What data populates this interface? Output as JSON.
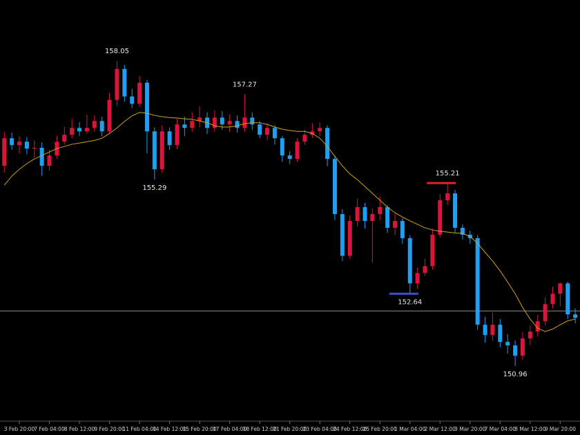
{
  "chart_data": {
    "type": "candlestick",
    "categories": [
      null,
      null,
      "3 Feb 20:00",
      null,
      null,
      null,
      "7 Feb 04:00",
      null,
      null,
      null,
      "8 Feb 12:00",
      null,
      null,
      null,
      "9 Feb 20:00",
      null,
      null,
      null,
      "11 Feb 04:00",
      null,
      null,
      null,
      "14 Feb 12:00",
      null,
      null,
      null,
      "15 Feb 20:00",
      null,
      null,
      null,
      "17 Feb 04:00",
      null,
      null,
      null,
      "18 Feb 12:00",
      null,
      null,
      null,
      "21 Feb 20:00",
      null,
      null,
      null,
      "23 Feb 04:00",
      null,
      null,
      null,
      "24 Feb 12:00",
      null,
      null,
      null,
      "25 Feb 20:00",
      null,
      null,
      null,
      "1 Mar 04:00",
      null,
      null,
      null,
      "2 Mar 12:00",
      null,
      null,
      null,
      "3 Mar 20:00",
      null,
      null,
      null,
      "7 Mar 04:00",
      null,
      null,
      null,
      "8 Mar 12:00",
      null,
      null,
      null,
      "9 Mar 20:00",
      null,
      null
    ],
    "open": [
      155.61,
      156.25,
      156.09,
      156.17,
      156.01,
      156.03,
      155.61,
      155.85,
      156.17,
      156.33,
      156.49,
      156.41,
      156.49,
      156.65,
      156.41,
      157.14,
      157.86,
      157.22,
      157.05,
      157.54,
      156.41,
      155.53,
      156.41,
      156.09,
      156.57,
      156.49,
      156.65,
      156.73,
      156.49,
      156.73,
      156.57,
      156.65,
      156.49,
      156.73,
      156.57,
      156.33,
      156.49,
      156.25,
      155.85,
      155.77,
      156.17,
      156.33,
      156.41,
      156.49,
      155.77,
      154.49,
      153.52,
      154.33,
      154.65,
      154.33,
      154.49,
      154.65,
      154.17,
      154.33,
      153.93,
      152.88,
      153.12,
      153.28,
      154.01,
      154.81,
      154.97,
      154.17,
      154.01,
      153.93,
      151.92,
      151.68,
      151.92,
      151.52,
      151.44,
      151.2,
      151.6,
      151.76,
      152.0,
      152.4,
      152.64,
      152.88,
      152.16
    ],
    "high": [
      156.4,
      156.38,
      156.3,
      156.28,
      156.2,
      156.15,
      155.98,
      156.3,
      156.52,
      156.7,
      156.62,
      156.8,
      156.78,
      156.75,
      157.3,
      158.05,
      157.95,
      157.4,
      157.7,
      157.6,
      156.5,
      156.55,
      156.5,
      156.7,
      156.75,
      156.85,
      157.0,
      156.85,
      156.9,
      156.88,
      156.8,
      156.78,
      157.27,
      156.85,
      156.65,
      156.6,
      156.55,
      156.3,
      155.95,
      156.25,
      156.45,
      156.6,
      156.62,
      156.55,
      155.85,
      154.6,
      154.45,
      154.85,
      154.75,
      154.62,
      154.9,
      154.7,
      154.5,
      154.4,
      154.0,
      153.25,
      153.45,
      154.15,
      154.95,
      155.21,
      155.05,
      154.25,
      154.1,
      154.0,
      152.1,
      152.2,
      152.05,
      151.7,
      151.55,
      151.75,
      151.9,
      152.15,
      152.55,
      152.8,
      152.9,
      152.92,
      152.3
    ],
    "low": [
      155.45,
      155.98,
      155.9,
      155.88,
      155.8,
      155.38,
      155.5,
      155.78,
      156.1,
      156.25,
      156.3,
      156.35,
      156.4,
      156.3,
      156.35,
      157.0,
      157.1,
      156.95,
      156.98,
      155.9,
      155.29,
      155.45,
      155.98,
      156.0,
      156.3,
      156.4,
      156.5,
      156.35,
      156.4,
      156.45,
      156.4,
      156.38,
      156.4,
      156.45,
      156.25,
      156.2,
      156.1,
      155.7,
      155.65,
      155.7,
      156.1,
      156.25,
      156.3,
      155.6,
      154.35,
      153.4,
      153.45,
      154.2,
      154.15,
      153.36,
      154.35,
      154.05,
      154.0,
      153.8,
      152.64,
      152.75,
      153.05,
      153.2,
      153.95,
      154.7,
      154.05,
      153.9,
      153.8,
      151.8,
      151.5,
      151.55,
      151.4,
      151.25,
      150.96,
      151.1,
      151.45,
      151.65,
      151.9,
      152.3,
      152.35,
      152.05,
      151.95
    ],
    "close": [
      156.25,
      156.09,
      156.17,
      156.01,
      156.03,
      155.61,
      155.85,
      156.17,
      156.33,
      156.49,
      156.41,
      156.49,
      156.65,
      156.41,
      157.14,
      157.86,
      157.22,
      157.05,
      157.54,
      156.41,
      155.53,
      156.41,
      156.09,
      156.57,
      156.49,
      156.65,
      156.73,
      156.49,
      156.73,
      156.57,
      156.65,
      156.49,
      156.73,
      156.57,
      156.33,
      156.49,
      156.25,
      155.85,
      155.77,
      156.17,
      156.33,
      156.41,
      156.49,
      155.77,
      154.49,
      153.52,
      154.33,
      154.65,
      154.33,
      154.49,
      154.65,
      154.17,
      154.33,
      153.93,
      152.88,
      153.12,
      153.28,
      154.01,
      154.81,
      154.97,
      154.17,
      154.01,
      153.93,
      151.92,
      151.68,
      151.92,
      151.52,
      151.44,
      151.2,
      151.6,
      151.76,
      152.0,
      152.4,
      152.64,
      152.88,
      152.16,
      152.08
    ],
    "up_color": "#dc143c",
    "down_color": "#1e9ff2",
    "ylim": [
      149.76,
      159.46
    ],
    "moving_average": {
      "color": "#d4a017",
      "values": [
        155.16,
        155.37,
        155.53,
        155.66,
        155.77,
        155.85,
        155.93,
        156.01,
        156.06,
        156.11,
        156.14,
        156.17,
        156.2,
        156.25,
        156.36,
        156.49,
        156.64,
        156.77,
        156.85,
        156.83,
        156.78,
        156.75,
        156.73,
        156.72,
        156.7,
        156.69,
        156.65,
        156.61,
        156.54,
        156.51,
        156.51,
        156.54,
        156.59,
        156.61,
        156.61,
        156.57,
        156.51,
        156.46,
        156.43,
        156.41,
        156.41,
        156.36,
        156.25,
        156.06,
        155.83,
        155.61,
        155.42,
        155.29,
        155.13,
        154.97,
        154.81,
        154.65,
        154.52,
        154.42,
        154.33,
        154.25,
        154.17,
        154.12,
        154.09,
        154.07,
        154.05,
        154.04,
        153.97,
        153.81,
        153.6,
        153.4,
        153.17,
        152.91,
        152.64,
        152.32,
        152.05,
        151.84,
        151.76,
        151.82,
        151.92,
        152.01,
        152.05
      ]
    },
    "price_line": {
      "value": 152.24,
      "color": "#8a8a8a"
    },
    "annotations": [
      {
        "candle": 15,
        "value": 158.05,
        "side": "above"
      },
      {
        "candle": 32,
        "value": 157.27,
        "side": "above"
      },
      {
        "candle": 20,
        "value": 155.29,
        "side": "below"
      },
      {
        "candle": 59,
        "value": 155.21,
        "side": "above",
        "line_color": "#e8202a"
      },
      {
        "candle": 54,
        "value": 152.64,
        "side": "below",
        "line_color": "#3b4fd6"
      },
      {
        "candle": 68,
        "value": 150.96,
        "side": "below"
      }
    ]
  }
}
